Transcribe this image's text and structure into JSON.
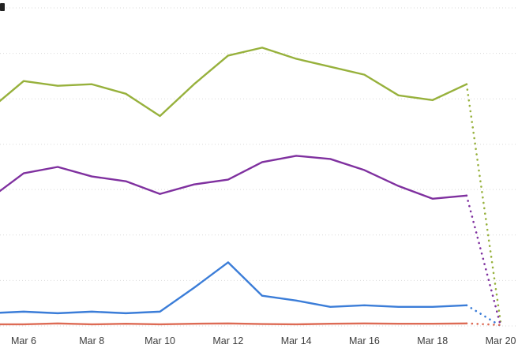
{
  "chart": {
    "background": "#ffffff",
    "gridline_color": "#d9d9d9",
    "tick_label_color": "#3d3d3d",
    "x_tick_labels": [
      "Mar 6",
      "Mar 8",
      "Mar 10",
      "Mar 12",
      "Mar 14",
      "Mar 16",
      "Mar 18",
      "Mar 20"
    ]
  },
  "chart_data": {
    "type": "line",
    "title": "",
    "xlabel": "",
    "ylabel": "",
    "x": [
      "Mar 5",
      "Mar 6",
      "Mar 7",
      "Mar 8",
      "Mar 9",
      "Mar 10",
      "Mar 11",
      "Mar 12",
      "Mar 13",
      "Mar 14",
      "Mar 15",
      "Mar 16",
      "Mar 17",
      "Mar 18",
      "Mar 19",
      "Mar 20"
    ],
    "x_tick_labels_shown": [
      "Mar 6",
      "Mar 8",
      "Mar 10",
      "Mar 12",
      "Mar 14",
      "Mar 16",
      "Mar 18",
      "Mar 20"
    ],
    "y_axis_labels_visible": false,
    "ylim": [
      0,
      100
    ],
    "y_gridline_values": [
      0,
      14.3,
      28.6,
      42.9,
      57.1,
      71.4,
      85.7,
      100
    ],
    "note": "Y-axis tick labels are cropped out of the visible frame; series values are estimated as percent of plot height from gridlines. The final segment (Mar 19 to Mar 20) is rendered as a dotted projection that drops sharply toward zero.",
    "solid_until_index": 14,
    "legend_visible": false,
    "grid": true,
    "series": [
      {
        "name": "green",
        "color": "#97b13c",
        "values": [
          68,
          77,
          75.5,
          76,
          73,
          66,
          76,
          85,
          87.5,
          84,
          81.5,
          79,
          72.5,
          71,
          76,
          1
        ]
      },
      {
        "name": "purple",
        "color": "#7f309f",
        "values": [
          40,
          48,
          50,
          47,
          45.5,
          41.5,
          44.5,
          46,
          51.5,
          53.5,
          52.5,
          49,
          44,
          40,
          41,
          0
        ]
      },
      {
        "name": "blue",
        "color": "#3b7dd8",
        "values": [
          4,
          4.5,
          4,
          4.5,
          4,
          4.5,
          12,
          20,
          9.5,
          8,
          6,
          6.5,
          6,
          6,
          6.5,
          0
        ]
      },
      {
        "name": "red",
        "color": "#dd6b55",
        "values": [
          0.5,
          0.5,
          0.8,
          0.5,
          0.7,
          0.5,
          0.7,
          0.8,
          0.6,
          0.5,
          0.7,
          0.8,
          0.7,
          0.7,
          0.8,
          0.3
        ]
      }
    ]
  }
}
